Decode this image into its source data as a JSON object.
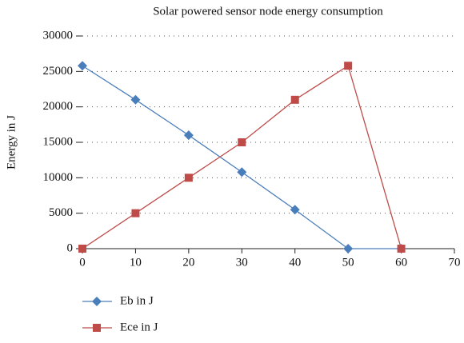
{
  "chart_data": {
    "type": "line",
    "title": "Solar powered sensor node energy consumption",
    "y_label": "Energy in J",
    "x": [
      0,
      10,
      20,
      30,
      40,
      50,
      60
    ],
    "series": [
      {
        "name": "Eb in J",
        "color": "#4a7ebb",
        "marker": "diamond",
        "values": [
          25800,
          21000,
          16000,
          10800,
          5500,
          0,
          0
        ]
      },
      {
        "name": "Ece in J",
        "color": "#be4b48",
        "marker": "square",
        "values": [
          0,
          5000,
          10000,
          15000,
          21000,
          25800,
          0
        ]
      }
    ],
    "xlim": [
      0,
      70
    ],
    "xticks": [
      0,
      10,
      20,
      30,
      40,
      50,
      60,
      70
    ],
    "ylim": [
      0,
      30000
    ],
    "yticks": [
      0,
      5000,
      10000,
      15000,
      20000,
      25000,
      30000
    ],
    "grid": true,
    "legend": "bottom"
  }
}
